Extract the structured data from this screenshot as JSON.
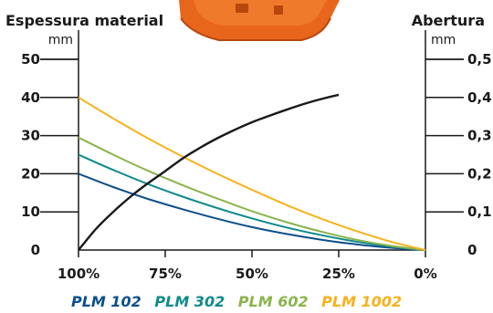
{
  "chart_data": {
    "type": "line",
    "left_axis": {
      "title": "Espessura material",
      "unit": "mm",
      "ticks": [
        "0",
        "10",
        "20",
        "30",
        "40",
        "50"
      ],
      "ylim": [
        0,
        50
      ]
    },
    "right_axis": {
      "title": "Abertura",
      "unit": "mm",
      "ticks": [
        "0",
        "0,1",
        "0,2",
        "0,3",
        "0,4",
        "0,5"
      ],
      "ylim": [
        0,
        0.5
      ]
    },
    "x_axis": {
      "ticks": [
        "100%",
        "75%",
        "50%",
        "25%",
        "0%"
      ],
      "values": [
        100,
        75,
        50,
        25,
        0
      ],
      "xlim": [
        100,
        0
      ]
    },
    "x": [
      100,
      90,
      80,
      70,
      60,
      50,
      40,
      30,
      20,
      10,
      0
    ],
    "series": [
      {
        "name": "PLM 102",
        "color": "#0d4f8b",
        "axis": "left",
        "values": [
          20,
          16.5,
          13.4,
          10.7,
          8.2,
          6.0,
          4.2,
          2.7,
          1.5,
          0.6,
          0
        ]
      },
      {
        "name": "PLM 302",
        "color": "#0e8a8c",
        "axis": "left",
        "values": [
          25,
          21.0,
          17.3,
          14.0,
          11.0,
          8.3,
          5.9,
          3.9,
          2.2,
          0.9,
          0
        ]
      },
      {
        "name": "PLM 602",
        "color": "#8ab44d",
        "axis": "left",
        "values": [
          29.5,
          25.0,
          20.8,
          17.0,
          13.5,
          10.2,
          7.3,
          4.8,
          2.7,
          1.1,
          0
        ]
      },
      {
        "name": "PLM 1002",
        "color": "#f6b21b",
        "axis": "left",
        "values": [
          40,
          34.5,
          29.3,
          24.5,
          20.0,
          15.8,
          11.8,
          8.2,
          5.0,
          2.2,
          0
        ]
      },
      {
        "name": "",
        "color": "#1a1a1a",
        "axis": "right",
        "x": [
          100,
          95,
          90,
          85,
          80,
          75,
          70,
          65,
          60,
          55,
          50,
          45,
          40,
          35,
          30,
          25
        ],
        "values": [
          0,
          0.055,
          0.1,
          0.14,
          0.175,
          0.207,
          0.24,
          0.268,
          0.293,
          0.315,
          0.335,
          0.352,
          0.368,
          0.383,
          0.396,
          0.407
        ]
      }
    ],
    "legend_position": "bottom",
    "grid": false
  }
}
